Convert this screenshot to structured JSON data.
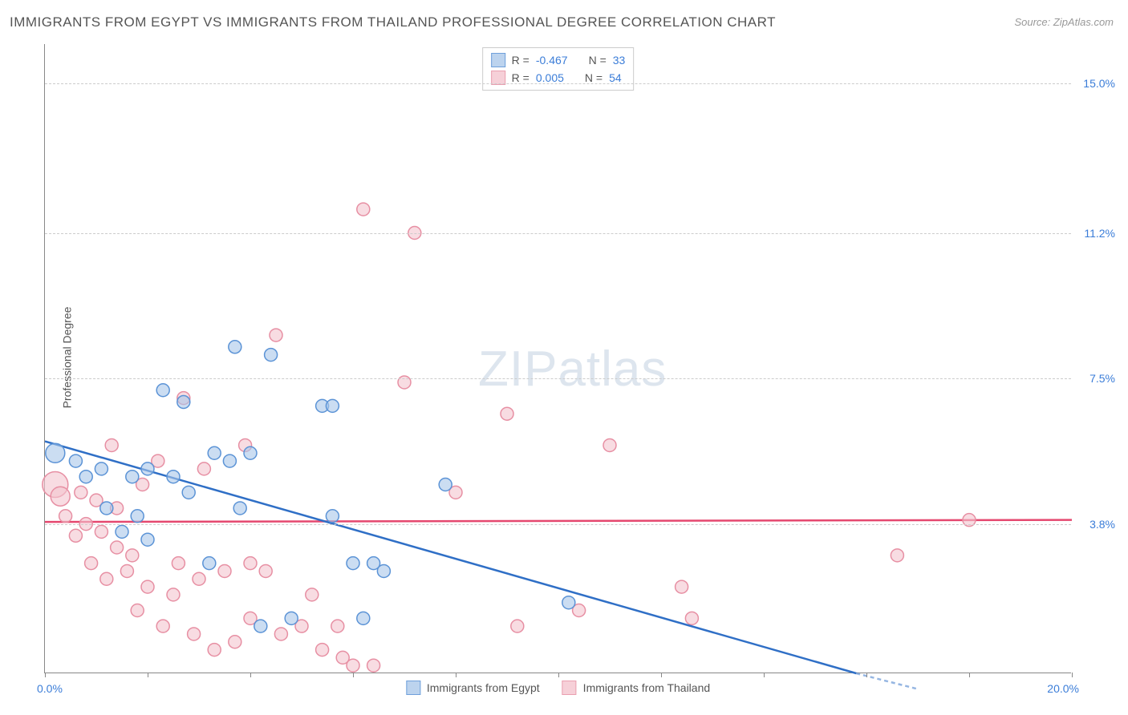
{
  "title": "IMMIGRANTS FROM EGYPT VS IMMIGRANTS FROM THAILAND PROFESSIONAL DEGREE CORRELATION CHART",
  "source": "Source: ZipAtlas.com",
  "ylabel": "Professional Degree",
  "watermark": "ZIPatlas",
  "chart": {
    "type": "scatter",
    "xlim": [
      0.0,
      20.0
    ],
    "ylim": [
      0.0,
      16.0
    ],
    "xlabel_min": "0.0%",
    "xlabel_max": "20.0%",
    "yticks": [
      {
        "v": 3.8,
        "label": "3.8%"
      },
      {
        "v": 7.5,
        "label": "7.5%"
      },
      {
        "v": 11.2,
        "label": "11.2%"
      },
      {
        "v": 15.0,
        "label": "15.0%"
      }
    ],
    "xtick_positions": [
      0,
      2,
      4,
      6,
      8,
      10,
      12,
      14,
      16,
      18,
      20
    ],
    "background_color": "#ffffff",
    "grid_color": "#cccccc",
    "axis_color": "#888888",
    "tick_label_color": "#3b7dd8",
    "series": [
      {
        "name": "Immigrants from Egypt",
        "fill": "#a9c7ea",
        "stroke": "#5b93d6",
        "line_color": "#2f6fc6",
        "swatch_fill": "#bcd3ee",
        "swatch_border": "#6fa0db",
        "r_value": "-0.467",
        "n_value": "33",
        "regression": {
          "x1": 0.0,
          "y1": 5.9,
          "x2": 15.8,
          "y2": 0.0
        },
        "points": [
          {
            "x": 0.2,
            "y": 5.6,
            "r": 12
          },
          {
            "x": 0.6,
            "y": 5.4,
            "r": 8
          },
          {
            "x": 0.8,
            "y": 5.0,
            "r": 8
          },
          {
            "x": 1.1,
            "y": 5.2,
            "r": 8
          },
          {
            "x": 1.2,
            "y": 4.2,
            "r": 8
          },
          {
            "x": 1.5,
            "y": 3.6,
            "r": 8
          },
          {
            "x": 1.7,
            "y": 5.0,
            "r": 8
          },
          {
            "x": 2.0,
            "y": 5.2,
            "r": 8
          },
          {
            "x": 1.8,
            "y": 4.0,
            "r": 8
          },
          {
            "x": 2.0,
            "y": 3.4,
            "r": 8
          },
          {
            "x": 2.3,
            "y": 7.2,
            "r": 8
          },
          {
            "x": 2.5,
            "y": 5.0,
            "r": 8
          },
          {
            "x": 2.7,
            "y": 6.9,
            "r": 8
          },
          {
            "x": 2.8,
            "y": 4.6,
            "r": 8
          },
          {
            "x": 3.2,
            "y": 2.8,
            "r": 8
          },
          {
            "x": 3.3,
            "y": 5.6,
            "r": 8
          },
          {
            "x": 3.6,
            "y": 5.4,
            "r": 8
          },
          {
            "x": 3.7,
            "y": 8.3,
            "r": 8
          },
          {
            "x": 3.8,
            "y": 4.2,
            "r": 8
          },
          {
            "x": 4.0,
            "y": 5.6,
            "r": 8
          },
          {
            "x": 4.2,
            "y": 1.2,
            "r": 8
          },
          {
            "x": 4.4,
            "y": 8.1,
            "r": 8
          },
          {
            "x": 4.8,
            "y": 1.4,
            "r": 8
          },
          {
            "x": 5.4,
            "y": 6.8,
            "r": 8
          },
          {
            "x": 5.6,
            "y": 6.8,
            "r": 8
          },
          {
            "x": 5.6,
            "y": 4.0,
            "r": 8
          },
          {
            "x": 6.0,
            "y": 2.8,
            "r": 8
          },
          {
            "x": 6.2,
            "y": 1.4,
            "r": 8
          },
          {
            "x": 6.4,
            "y": 2.8,
            "r": 8
          },
          {
            "x": 6.6,
            "y": 2.6,
            "r": 8
          },
          {
            "x": 7.8,
            "y": 4.8,
            "r": 8
          },
          {
            "x": 10.2,
            "y": 1.8,
            "r": 8
          }
        ]
      },
      {
        "name": "Immigrants from Thailand",
        "fill": "#f3c5cf",
        "stroke": "#e78fa3",
        "line_color": "#e5486f",
        "swatch_fill": "#f6d0d8",
        "swatch_border": "#ea9fb0",
        "r_value": "0.005",
        "n_value": "54",
        "regression": {
          "x1": 0.0,
          "y1": 3.85,
          "x2": 20.0,
          "y2": 3.9
        },
        "points": [
          {
            "x": 0.2,
            "y": 4.8,
            "r": 16
          },
          {
            "x": 0.3,
            "y": 4.5,
            "r": 12
          },
          {
            "x": 0.4,
            "y": 4.0,
            "r": 8
          },
          {
            "x": 0.6,
            "y": 3.5,
            "r": 8
          },
          {
            "x": 0.7,
            "y": 4.6,
            "r": 8
          },
          {
            "x": 0.8,
            "y": 3.8,
            "r": 8
          },
          {
            "x": 0.9,
            "y": 2.8,
            "r": 8
          },
          {
            "x": 1.0,
            "y": 4.4,
            "r": 8
          },
          {
            "x": 1.1,
            "y": 3.6,
            "r": 8
          },
          {
            "x": 1.2,
            "y": 2.4,
            "r": 8
          },
          {
            "x": 1.3,
            "y": 5.8,
            "r": 8
          },
          {
            "x": 1.4,
            "y": 3.2,
            "r": 8
          },
          {
            "x": 1.4,
            "y": 4.2,
            "r": 8
          },
          {
            "x": 1.6,
            "y": 2.6,
            "r": 8
          },
          {
            "x": 1.7,
            "y": 3.0,
            "r": 8
          },
          {
            "x": 1.8,
            "y": 1.6,
            "r": 8
          },
          {
            "x": 1.9,
            "y": 4.8,
            "r": 8
          },
          {
            "x": 2.0,
            "y": 2.2,
            "r": 8
          },
          {
            "x": 2.2,
            "y": 5.4,
            "r": 8
          },
          {
            "x": 2.3,
            "y": 1.2,
            "r": 8
          },
          {
            "x": 2.5,
            "y": 2.0,
            "r": 8
          },
          {
            "x": 2.6,
            "y": 2.8,
            "r": 8
          },
          {
            "x": 2.7,
            "y": 7.0,
            "r": 8
          },
          {
            "x": 2.9,
            "y": 1.0,
            "r": 8
          },
          {
            "x": 3.0,
            "y": 2.4,
            "r": 8
          },
          {
            "x": 3.1,
            "y": 5.2,
            "r": 8
          },
          {
            "x": 3.3,
            "y": 0.6,
            "r": 8
          },
          {
            "x": 3.5,
            "y": 2.6,
            "r": 8
          },
          {
            "x": 3.7,
            "y": 0.8,
            "r": 8
          },
          {
            "x": 3.9,
            "y": 5.8,
            "r": 8
          },
          {
            "x": 4.0,
            "y": 2.8,
            "r": 8
          },
          {
            "x": 4.0,
            "y": 1.4,
            "r": 8
          },
          {
            "x": 4.3,
            "y": 2.6,
            "r": 8
          },
          {
            "x": 4.5,
            "y": 8.6,
            "r": 8
          },
          {
            "x": 4.6,
            "y": 1.0,
            "r": 8
          },
          {
            "x": 5.0,
            "y": 1.2,
            "r": 8
          },
          {
            "x": 5.2,
            "y": 2.0,
            "r": 8
          },
          {
            "x": 5.4,
            "y": 0.6,
            "r": 8
          },
          {
            "x": 5.7,
            "y": 1.2,
            "r": 8
          },
          {
            "x": 5.8,
            "y": 0.4,
            "r": 8
          },
          {
            "x": 6.0,
            "y": 0.2,
            "r": 8
          },
          {
            "x": 6.2,
            "y": 11.8,
            "r": 8
          },
          {
            "x": 6.4,
            "y": 0.2,
            "r": 8
          },
          {
            "x": 7.0,
            "y": 7.4,
            "r": 8
          },
          {
            "x": 7.2,
            "y": 11.2,
            "r": 8
          },
          {
            "x": 8.0,
            "y": 4.6,
            "r": 8
          },
          {
            "x": 9.0,
            "y": 6.6,
            "r": 8
          },
          {
            "x": 9.2,
            "y": 1.2,
            "r": 8
          },
          {
            "x": 10.4,
            "y": 1.6,
            "r": 8
          },
          {
            "x": 11.0,
            "y": 5.8,
            "r": 8
          },
          {
            "x": 12.4,
            "y": 2.2,
            "r": 8
          },
          {
            "x": 12.6,
            "y": 1.4,
            "r": 8
          },
          {
            "x": 16.6,
            "y": 3.0,
            "r": 8
          },
          {
            "x": 18.0,
            "y": 3.9,
            "r": 8
          }
        ]
      }
    ]
  },
  "legend_top": {
    "rows": [
      {
        "r_label": "R =",
        "n_label": "N ="
      },
      {
        "r_label": "R =",
        "n_label": "N ="
      }
    ]
  },
  "legend_bottom": {
    "items": [
      "Immigrants from Egypt",
      "Immigrants from Thailand"
    ]
  }
}
